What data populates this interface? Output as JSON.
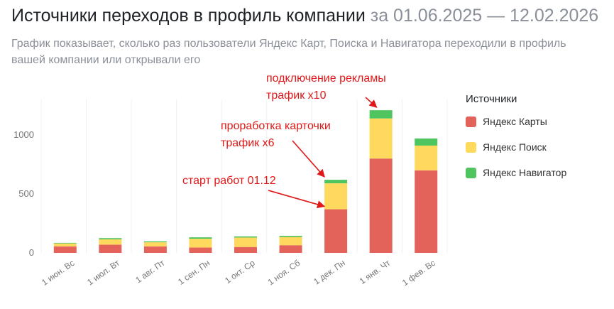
{
  "header": {
    "title": "Источники переходов в профиль компании",
    "period": "за 01.06.2025 — 12.02.2026",
    "subtitle": "График показывает, сколько раз пользователи Яндекс Карт, Поиска и Навигатора переходили в профиль вашей компании или открывали его"
  },
  "legend": {
    "title": "Источники",
    "items": [
      {
        "label": "Яндекс Карты",
        "color": "#e3625a"
      },
      {
        "label": "Яндекс Поиск",
        "color": "#ffd95e"
      },
      {
        "label": "Яндекс Навигатор",
        "color": "#4fc45f"
      }
    ]
  },
  "chart_data": {
    "type": "bar",
    "stacked": true,
    "categories": [
      "1 июн. Вс",
      "1 июл. Вт",
      "1 авг. Пт",
      "1 сен. Пн",
      "1 окт. Ср",
      "1 ноя. Сб",
      "1 дек. Пн",
      "1 янв. Чт",
      "1 фев. Вс"
    ],
    "series": [
      {
        "name": "Яндекс Карты",
        "color": "#e3625a",
        "values": [
          55,
          70,
          55,
          45,
          50,
          65,
          370,
          800,
          700
        ]
      },
      {
        "name": "Яндекс Поиск",
        "color": "#ffd95e",
        "values": [
          25,
          45,
          35,
          75,
          80,
          70,
          220,
          340,
          210
        ]
      },
      {
        "name": "Яндекс Навигатор",
        "color": "#4fc45f",
        "values": [
          5,
          10,
          8,
          12,
          10,
          10,
          30,
          70,
          60
        ]
      }
    ],
    "yticks": [
      0,
      500,
      1000
    ],
    "ylim": [
      0,
      1250
    ],
    "grid": "vertical",
    "legend_position": "right",
    "annotations": [
      {
        "text": "старт работ 01.12",
        "lines": [
          "старт работ 01.12"
        ],
        "target_category": 6,
        "target_value": 370,
        "color": "#e01818"
      },
      {
        "text": "проработка карточки трафик х6",
        "lines": [
          "проработка карточки",
          "трафик х6"
        ],
        "target_category": 6,
        "target_value": 620,
        "color": "#e01818"
      },
      {
        "text": "подключение рекламы трафик х10",
        "lines": [
          "подключение рекламы",
          "трафик х10"
        ],
        "target_category": 7,
        "target_value": 1210,
        "color": "#e01818"
      }
    ]
  }
}
